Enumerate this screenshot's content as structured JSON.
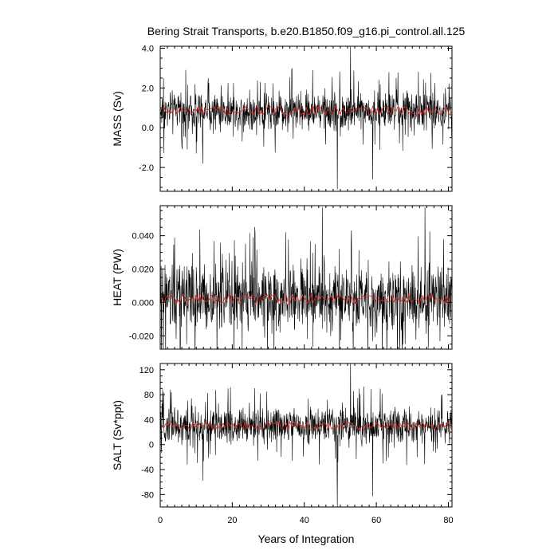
{
  "chart_data": [
    {
      "type": "line",
      "title": "Bering Strait Transports, b.e20.B1850.f09_g16.pi_control.all.125",
      "ylabel": "MASS (Sv)",
      "xlabel": "",
      "xlim": [
        0,
        81
      ],
      "ylim": [
        -3.2,
        4.1
      ],
      "yticks": [
        -2.0,
        0.0,
        2.0,
        4.0
      ],
      "ytick_labels": [
        "-2.0",
        "0.0",
        "2.0",
        "4.0"
      ],
      "xticks": [
        0,
        20,
        40,
        60,
        80
      ],
      "xtick_labels": [],
      "series": [
        {
          "role": "monthly",
          "color": "#000000",
          "mean": 0.85,
          "amplitude": 0.6
        },
        {
          "role": "annual-mean",
          "color": "#e8261f",
          "mean": 0.85,
          "amplitude": 0.25
        }
      ],
      "spikes": [
        {
          "x": 49.2,
          "y": -3.1
        },
        {
          "x": 52.8,
          "y": 4.1
        },
        {
          "x": 59.0,
          "y": -2.6
        },
        {
          "x": 11.8,
          "y": -1.8
        }
      ]
    },
    {
      "type": "line",
      "title": "",
      "ylabel": "HEAT (PW)",
      "xlabel": "",
      "xlim": [
        0,
        81
      ],
      "ylim": [
        -0.028,
        0.058
      ],
      "yticks": [
        -0.02,
        0.0,
        0.02,
        0.04
      ],
      "ytick_labels": [
        "-0.020",
        "0.000",
        "0.020",
        "0.040"
      ],
      "xticks": [
        0,
        20,
        40,
        60,
        80
      ],
      "xtick_labels": [],
      "series": [
        {
          "role": "monthly",
          "color": "#000000",
          "mean": 0.003,
          "amplitude": 0.012
        },
        {
          "role": "annual-mean",
          "color": "#e8261f",
          "mean": 0.002,
          "amplitude": 0.003
        }
      ],
      "spikes": [
        {
          "x": 45.0,
          "y": 0.057
        },
        {
          "x": 73.5,
          "y": 0.057
        },
        {
          "x": 5.5,
          "y": -0.028
        }
      ]
    },
    {
      "type": "line",
      "title": "",
      "ylabel": "SALT (Sv*ppt)",
      "xlabel": "Years of Integration",
      "xlim": [
        0,
        81
      ],
      "ylim": [
        -100,
        130
      ],
      "yticks": [
        -80,
        -40,
        0,
        40,
        80,
        120
      ],
      "ytick_labels": [
        "-80",
        "-40",
        "0",
        "40",
        "80",
        "120"
      ],
      "xticks": [
        0,
        20,
        40,
        60,
        80
      ],
      "xtick_labels": [
        "0",
        "20",
        "40",
        "60",
        "80"
      ],
      "series": [
        {
          "role": "monthly",
          "color": "#000000",
          "mean": 30,
          "amplitude": 18
        },
        {
          "role": "annual-mean",
          "color": "#e8261f",
          "mean": 30,
          "amplitude": 7
        }
      ],
      "spikes": [
        {
          "x": 49.2,
          "y": -100
        },
        {
          "x": 52.8,
          "y": 130
        },
        {
          "x": 59.0,
          "y": -83
        },
        {
          "x": 11.8,
          "y": -58
        }
      ]
    }
  ]
}
